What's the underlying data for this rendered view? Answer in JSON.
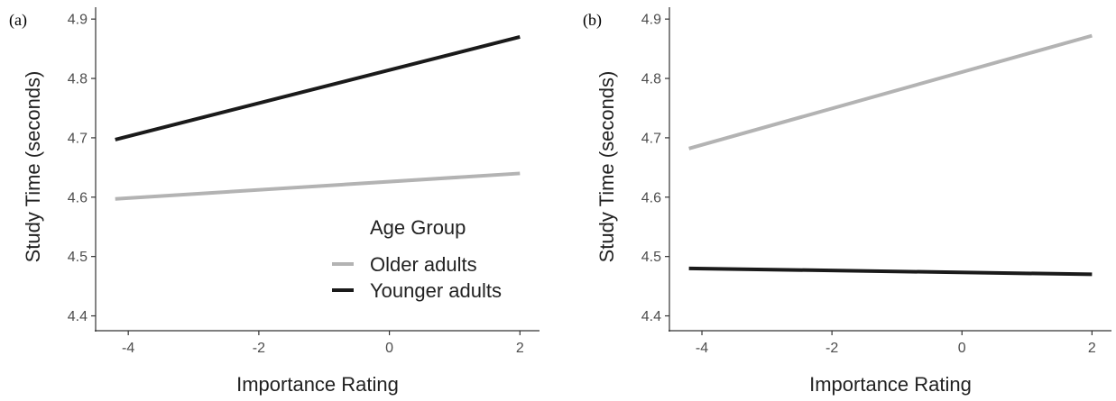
{
  "panels": [
    {
      "label": "(a)",
      "xlabel": "Importance Rating",
      "ylabel": "Study Time (seconds)"
    },
    {
      "label": "(b)",
      "xlabel": "Importance Rating",
      "ylabel": "Study Time (seconds)"
    }
  ],
  "legend": {
    "title": "Age Group",
    "items": [
      {
        "label": "Older adults",
        "color": "#b3b3b3"
      },
      {
        "label": "Younger adults",
        "color": "#1a1a1a"
      }
    ]
  },
  "chart_data": [
    {
      "type": "line",
      "x": [
        -4.2,
        2
      ],
      "series": [
        {
          "name": "Older adults",
          "color": "#b3b3b3",
          "values": [
            4.597,
            4.64
          ]
        },
        {
          "name": "Younger adults",
          "color": "#1a1a1a",
          "values": [
            4.697,
            4.87
          ]
        }
      ],
      "xlabel": "Importance Rating",
      "ylabel": "Study Time (seconds)",
      "xticks": [
        -4,
        -2,
        0,
        2
      ],
      "xtick_labels": [
        "-4",
        "-2",
        "0",
        "2"
      ],
      "yticks": [
        4.4,
        4.5,
        4.6,
        4.7,
        4.8,
        4.9
      ],
      "ytick_labels": [
        "4.4",
        "4.5",
        "4.6",
        "4.7",
        "4.8",
        "4.9"
      ],
      "xlim": [
        -4.5,
        2.3
      ],
      "ylim": [
        4.375,
        4.92
      ],
      "grid": false,
      "legend": "bottom-right"
    },
    {
      "type": "line",
      "x": [
        -4.2,
        2
      ],
      "series": [
        {
          "name": "Older adults",
          "color": "#b3b3b3",
          "values": [
            4.682,
            4.872
          ]
        },
        {
          "name": "Younger adults",
          "color": "#1a1a1a",
          "values": [
            4.48,
            4.47
          ]
        }
      ],
      "xlabel": "Importance Rating",
      "ylabel": "Study Time (seconds)",
      "xticks": [
        -4,
        -2,
        0,
        2
      ],
      "xtick_labels": [
        "-4",
        "-2",
        "0",
        "2"
      ],
      "yticks": [
        4.4,
        4.5,
        4.6,
        4.7,
        4.8,
        4.9
      ],
      "ytick_labels": [
        "4.4",
        "4.5",
        "4.6",
        "4.7",
        "4.8",
        "4.9"
      ],
      "xlim": [
        -4.5,
        2.3
      ],
      "ylim": [
        4.375,
        4.92
      ],
      "grid": false,
      "legend": "none"
    }
  ]
}
